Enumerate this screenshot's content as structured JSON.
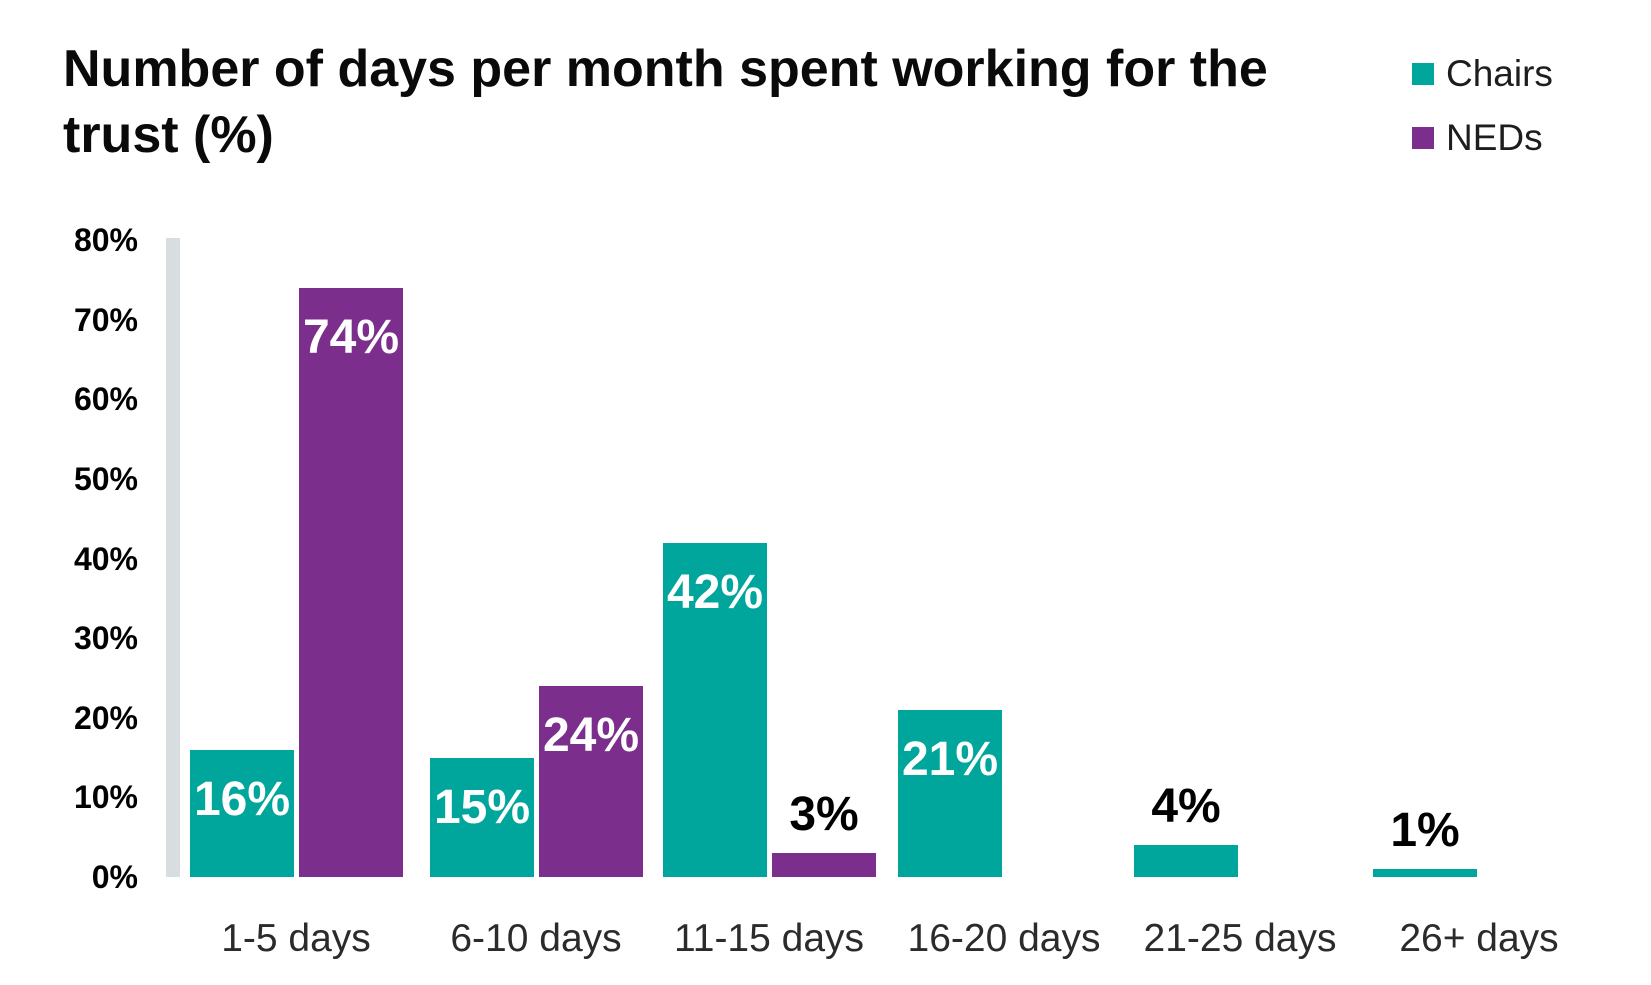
{
  "title": {
    "lines": [
      "Number of days per month spent working for the",
      "trust (%)"
    ]
  },
  "legend": {
    "items": [
      {
        "label": "Chairs",
        "color": "#00a69c"
      },
      {
        "label": "NEDs",
        "color": "#7c2e8c"
      }
    ]
  },
  "chart_data": {
    "type": "bar",
    "title": "Number of days per month spent working for the trust (%)",
    "categories": [
      "1-5 days",
      "6-10 days",
      "11-15 days",
      "16-20 days",
      "21-25 days",
      "26+ days"
    ],
    "series": [
      {
        "name": "Chairs",
        "color": "#00a69c",
        "values": [
          16,
          15,
          42,
          21,
          4,
          1
        ],
        "data_labels": [
          "16%",
          "15%",
          "42%",
          "21%",
          "4%",
          "1%"
        ]
      },
      {
        "name": "NEDs",
        "color": "#7c2e8c",
        "values": [
          74,
          24,
          3,
          null,
          null,
          null
        ],
        "data_labels": [
          "74%",
          "24%",
          "3%",
          null,
          null,
          null
        ]
      }
    ],
    "xlabel": "",
    "ylabel": "",
    "ylim": [
      0,
      80
    ],
    "yticks": [
      {
        "value": 80,
        "label": "80%"
      },
      {
        "value": 70,
        "label": "70%"
      },
      {
        "value": 60,
        "label": "60%"
      },
      {
        "value": 50,
        "label": "50%"
      },
      {
        "value": 40,
        "label": "40%"
      },
      {
        "value": 30,
        "label": "30%"
      },
      {
        "value": 20,
        "label": "20%"
      },
      {
        "value": 10,
        "label": "10%"
      },
      {
        "value": 0,
        "label": "0%"
      }
    ],
    "grid": false,
    "legend_position": "top-right",
    "axis_colors": {
      "y_axis_bar": "#d8dee0"
    }
  }
}
